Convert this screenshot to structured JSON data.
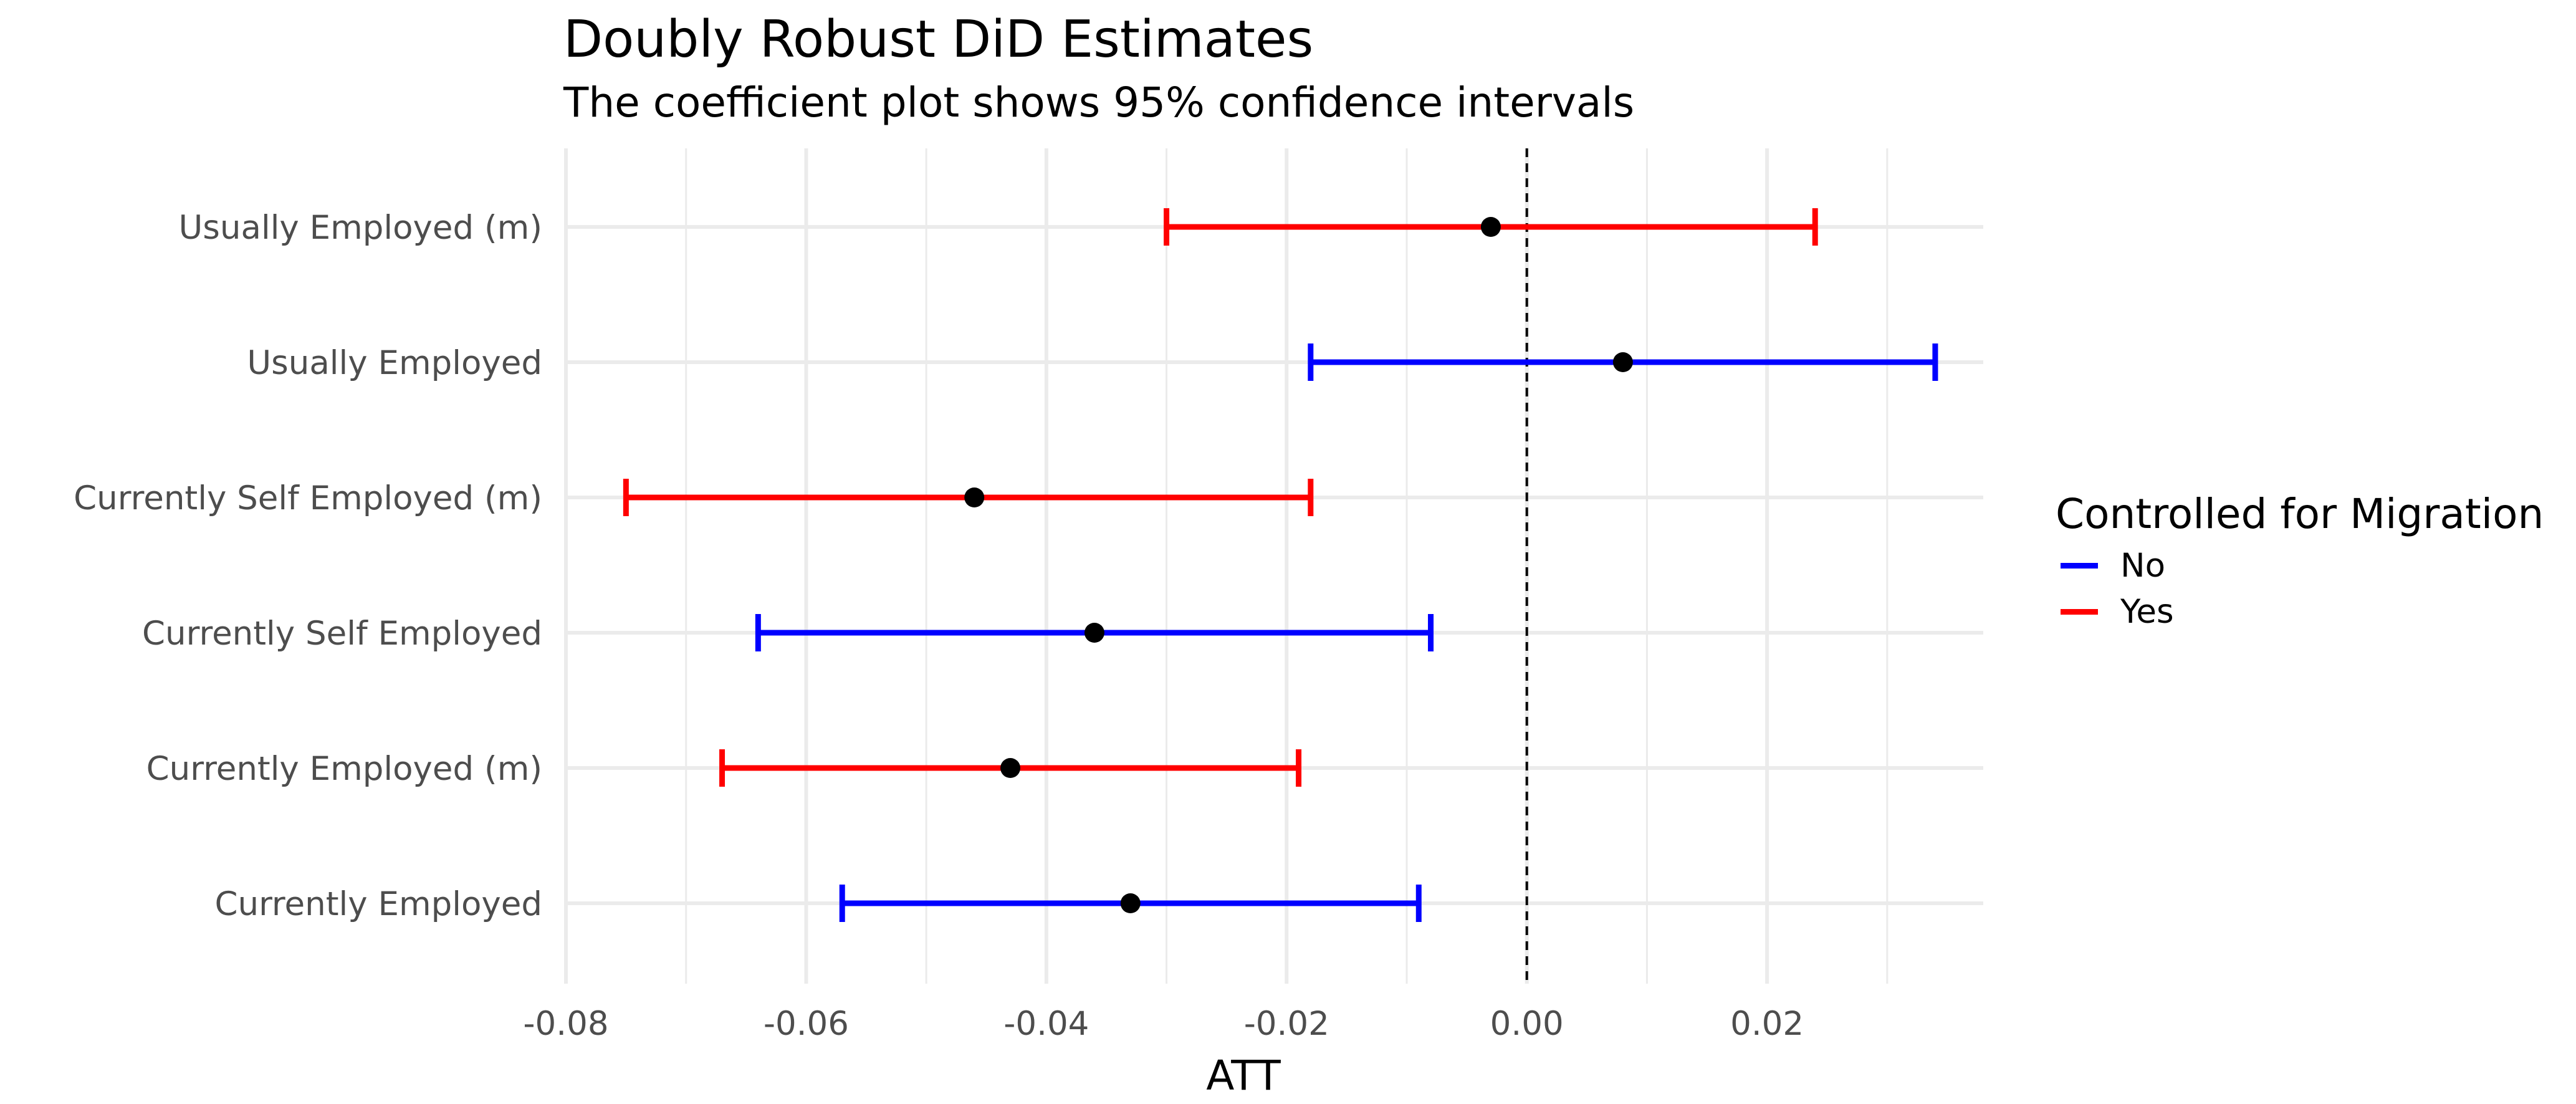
{
  "chart_data": {
    "type": "errorbar",
    "title": "Doubly Robust DiD Estimates",
    "subtitle": "The coefficient plot shows 95% confidence intervals",
    "xlabel": "ATT",
    "ylabel": "",
    "xlim": [
      -0.08,
      0.038
    ],
    "xticks": [
      -0.08,
      -0.06,
      -0.04,
      -0.02,
      0.0,
      0.02
    ],
    "xtick_labels": [
      "-0.08",
      "-0.06",
      "-0.04",
      "-0.02",
      "0.00",
      "0.02"
    ],
    "reference_line": {
      "x": 0.0,
      "style": "dashed"
    },
    "grid": true,
    "legend": {
      "title": "Controlled for Migration",
      "placement": "right",
      "entries": [
        {
          "label": "No",
          "color": "#0000ff"
        },
        {
          "label": "Yes",
          "color": "#ff0000"
        }
      ]
    },
    "categories": [
      "Usually Employed (m)",
      "Usually Employed",
      "Currently Self Employed (m)",
      "Currently Self Employed",
      "Currently Employed (m)",
      "Currently Employed"
    ],
    "points": [
      {
        "label": "Usually Employed (m)",
        "group": "Yes",
        "estimate": -0.003,
        "ci_low": -0.03,
        "ci_high": 0.024
      },
      {
        "label": "Usually Employed",
        "group": "No",
        "estimate": 0.008,
        "ci_low": -0.018,
        "ci_high": 0.034
      },
      {
        "label": "Currently Self Employed (m)",
        "group": "Yes",
        "estimate": -0.046,
        "ci_low": -0.075,
        "ci_high": -0.018
      },
      {
        "label": "Currently Self Employed",
        "group": "No",
        "estimate": -0.036,
        "ci_low": -0.064,
        "ci_high": -0.008
      },
      {
        "label": "Currently Employed (m)",
        "group": "Yes",
        "estimate": -0.043,
        "ci_low": -0.067,
        "ci_high": -0.019
      },
      {
        "label": "Currently Employed",
        "group": "No",
        "estimate": -0.033,
        "ci_low": -0.057,
        "ci_high": -0.009
      }
    ],
    "colors": {
      "No": "#0000ff",
      "Yes": "#ff0000",
      "point": "#000000",
      "grid": "#ebebeb"
    }
  }
}
